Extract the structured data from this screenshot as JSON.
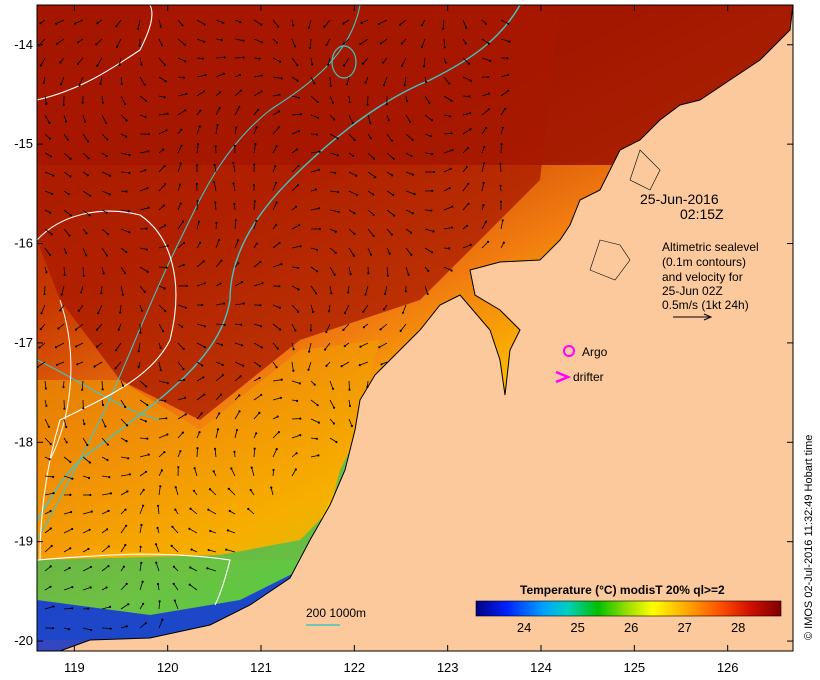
{
  "map": {
    "lat_ticks": [
      "-14",
      "-15",
      "-16",
      "-17",
      "-18",
      "-19",
      "-20"
    ],
    "lon_ticks": [
      "119",
      "120",
      "121",
      "122",
      "123",
      "124",
      "125",
      "126"
    ],
    "lat_range": [
      -20.1,
      -13.6
    ],
    "lon_range": [
      118.6,
      126.7
    ],
    "date_line1": "25-Jun-2016",
    "date_line2": "02:15Z",
    "altimetry_note": [
      "Altimetric sealevel",
      "(0.1m contours)",
      "and velocity for",
      "25-Jun 02Z",
      "0.5m/s (1kt 24h)"
    ],
    "legend_argo": "Argo",
    "legend_drifter": "drifter",
    "depth_scale": "200  1000m",
    "colorbar_title": "Temperature (°C) modisT 20% ql>=2",
    "colorbar_ticks": [
      "24",
      "25",
      "26",
      "27",
      "28"
    ],
    "colorbar_range": [
      23.1,
      28.8
    ],
    "credit": "© IMOS 02-Jul-2016 11:32:49 Hobart time",
    "colors": {
      "land": "#fbc99b",
      "argo": "#ff00ff",
      "drifter": "#ff00ff",
      "bathymetry": "#3fc6c6",
      "sealevel_contour": "#ffffff",
      "colorscale": [
        "#000080",
        "#0000ff",
        "#0080ff",
        "#00d0d0",
        "#00c000",
        "#a0e000",
        "#ffff00",
        "#ffb000",
        "#ff6000",
        "#e02000",
        "#a00000",
        "#800000"
      ]
    }
  }
}
